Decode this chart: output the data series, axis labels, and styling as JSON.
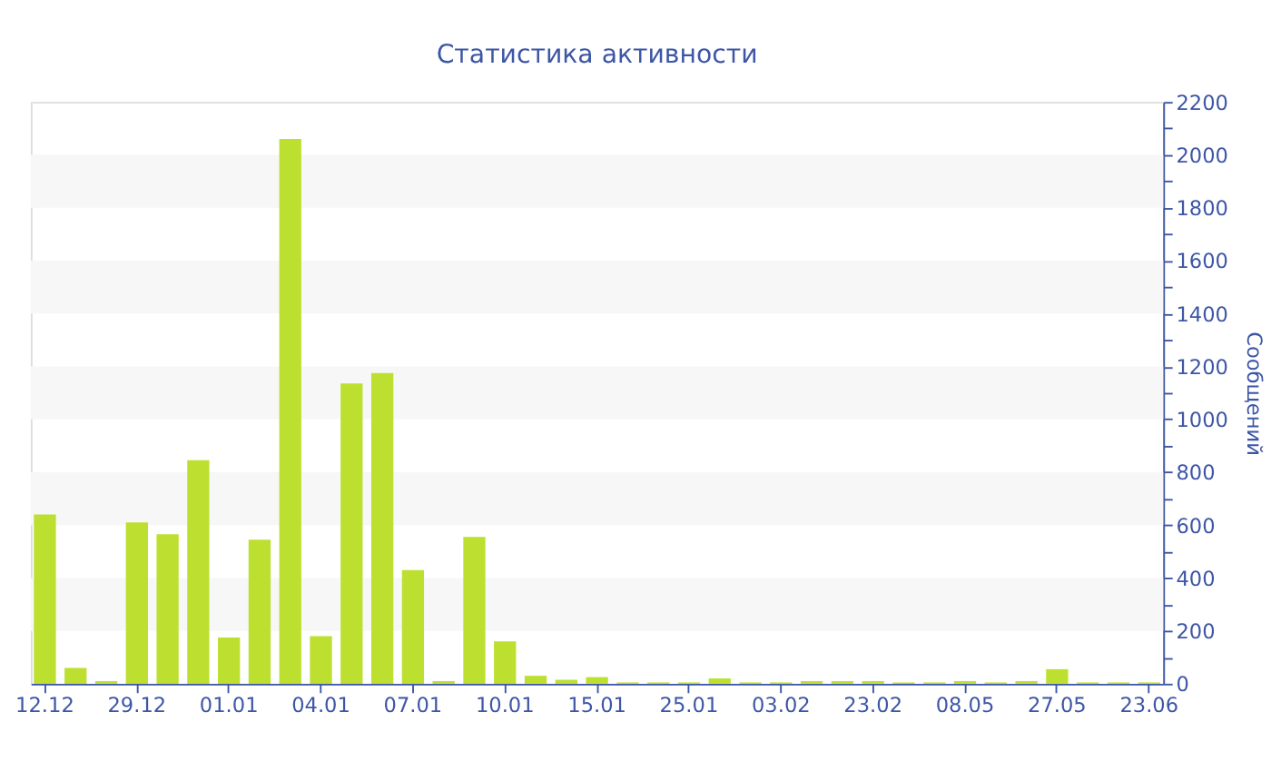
{
  "chart_data": {
    "type": "bar",
    "title": "Статистика активности",
    "ylabel": "Сообщений",
    "categories": [
      "12.12",
      null,
      null,
      "29.12",
      null,
      null,
      "01.01",
      null,
      null,
      "04.01",
      null,
      null,
      "07.01",
      null,
      null,
      "10.01",
      null,
      null,
      "15.01",
      null,
      null,
      "25.01",
      null,
      null,
      "03.02",
      null,
      null,
      "23.02",
      null,
      null,
      "08.05",
      null,
      null,
      "27.05",
      null,
      null,
      "23.06"
    ],
    "values": [
      640,
      60,
      10,
      610,
      565,
      845,
      175,
      545,
      2060,
      180,
      1135,
      1175,
      430,
      10,
      555,
      160,
      30,
      15,
      25,
      5,
      5,
      5,
      20,
      5,
      5,
      10,
      10,
      10,
      5,
      5,
      10,
      5,
      10,
      55,
      5,
      5,
      5
    ],
    "color": "#bde030",
    "ylim": [
      0,
      2200
    ],
    "yticks": [
      0,
      {
        "value": 100,
        "label": null
      },
      200,
      {
        "value": 300,
        "label": null
      },
      400,
      {
        "value": 500,
        "label": null
      },
      600,
      {
        "value": 700,
        "label": null
      },
      800,
      {
        "value": 900,
        "label": null
      },
      1000,
      {
        "value": 1100,
        "label": null
      },
      1200,
      {
        "value": 1300,
        "label": null
      },
      1400,
      {
        "value": 1500,
        "label": null
      },
      1600,
      {
        "value": 1700,
        "label": null
      },
      1800,
      {
        "value": 1900,
        "label": null
      },
      2000,
      {
        "value": 2100,
        "label": null
      },
      2200
    ],
    "bands": [
      {
        "axis": "y",
        "from": 200,
        "to": 400,
        "color": "#f7f7f7"
      },
      {
        "axis": "y",
        "from": 600,
        "to": 800,
        "color": "#f7f7f7"
      },
      {
        "axis": "y",
        "from": 1000,
        "to": 1200,
        "color": "#f7f7f7"
      },
      {
        "axis": "y",
        "from": 1400,
        "to": 1600,
        "color": "#f7f7f7"
      },
      {
        "axis": "y",
        "from": 1800,
        "to": 2000,
        "color": "#f7f7f7"
      }
    ],
    "grid": false
  }
}
